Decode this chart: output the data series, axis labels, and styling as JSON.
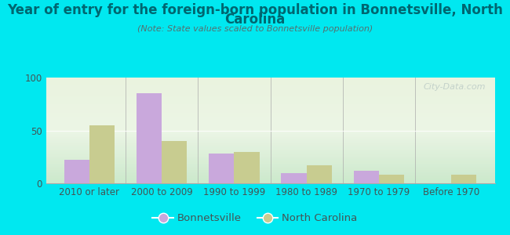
{
  "title_line1": "Year of entry for the foreign-born population in Bonnetsville, North",
  "title_line2": "Carolina",
  "subtitle": "(Note: State values scaled to Bonnetsville population)",
  "categories": [
    "2010 or later",
    "2000 to 2009",
    "1990 to 1999",
    "1980 to 1989",
    "1970 to 1979",
    "Before 1970"
  ],
  "bonnetsville_values": [
    22,
    85,
    28,
    10,
    12,
    0
  ],
  "nc_values": [
    55,
    40,
    30,
    17,
    8,
    8
  ],
  "bonnetsville_color": "#c9a8dc",
  "nc_color": "#c8cc90",
  "ylim": [
    0,
    100
  ],
  "yticks": [
    0,
    50,
    100
  ],
  "background_outer": "#00e8f0",
  "background_inner": "#e8f5e2",
  "title_color": "#006670",
  "subtitle_color": "#557070",
  "tick_color": "#445555",
  "legend_bonnetsville": "Bonnetsville",
  "legend_nc": "North Carolina",
  "watermark": "City-Data.com",
  "title_fontsize": 12,
  "subtitle_fontsize": 8,
  "tick_fontsize": 8.5,
  "legend_fontsize": 9.5
}
